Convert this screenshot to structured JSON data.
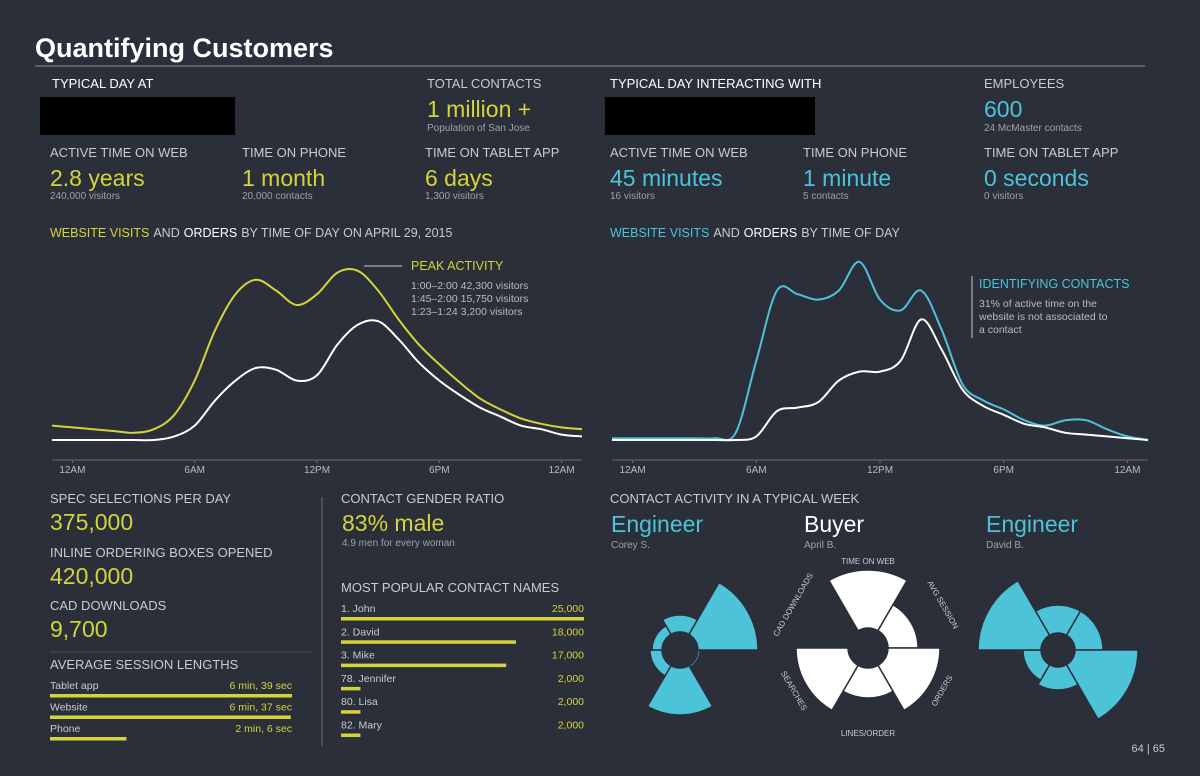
{
  "title": "Quantifying Customers",
  "left_header": {
    "heading": "TYPICAL DAY AT",
    "total": {
      "label": "TOTAL CONTACTS",
      "value": "1 million +",
      "note": "Population of San Jose"
    },
    "stats": [
      {
        "label": "ACTIVE TIME ON WEB",
        "value": "2.8 years",
        "note": "240,000 visitors"
      },
      {
        "label": "TIME ON PHONE",
        "value": "1 month",
        "note": "20,000 contacts"
      },
      {
        "label": "TIME ON TABLET APP",
        "value": "6 days",
        "note": "1,300 visitors"
      }
    ]
  },
  "right_header": {
    "heading": "TYPICAL DAY INTERACTING WITH",
    "total": {
      "label": "EMPLOYEES",
      "value": "600",
      "note": "24 McMaster contacts"
    },
    "stats": [
      {
        "label": "ACTIVE TIME ON WEB",
        "value": "45 minutes",
        "note": "16 visitors"
      },
      {
        "label": "TIME ON PHONE",
        "value": "1 minute",
        "note": "5 contacts"
      },
      {
        "label": "TIME ON TABLET APP",
        "value": "0 seconds",
        "note": "0 visitors"
      }
    ]
  },
  "chart_data": [
    {
      "type": "line",
      "title_connector": "AND",
      "title_suffix": "BY TIME OF DAY ON APRIL 29, 2015",
      "x": [
        -1,
        0,
        1,
        2,
        3,
        4,
        5,
        6,
        7,
        8,
        9,
        10,
        11,
        12,
        13,
        14,
        15,
        16,
        17,
        18,
        19,
        20,
        21,
        22,
        23,
        24,
        25
      ],
      "xlim": [
        -1,
        25
      ],
      "ylim": [
        0,
        100
      ],
      "xticks": [
        {
          "value": 0,
          "label": "12AM"
        },
        {
          "value": 6,
          "label": "6AM"
        },
        {
          "value": 12,
          "label": "12PM"
        },
        {
          "value": 18,
          "label": "6PM"
        },
        {
          "value": 24,
          "label": "12AM"
        }
      ],
      "series": [
        {
          "name": "WEBSITE VISITS",
          "color": "#d4d43a",
          "values": [
            8,
            7,
            6,
            5,
            4,
            6,
            14,
            33,
            61,
            81,
            89,
            83,
            75,
            81,
            93,
            94,
            83,
            67,
            53,
            42,
            32,
            23,
            17,
            12,
            9,
            7,
            6
          ]
        },
        {
          "name": "ORDERS",
          "color": "#ffffff",
          "values": [
            0,
            0,
            0,
            0,
            0,
            0,
            2,
            8,
            22,
            33,
            40,
            39,
            33,
            36,
            53,
            64,
            66,
            56,
            43,
            33,
            25,
            18,
            13,
            8,
            6,
            3,
            2
          ]
        }
      ],
      "annotation": {
        "title": "PEAK ACTIVITY",
        "lines": [
          "1:00–2:00  42,300 visitors",
          "1:45–2:00  15,750 visitors",
          "1:23–1:24  3,200 visitors"
        ]
      }
    },
    {
      "type": "line",
      "title_connector": "AND",
      "title_suffix": "BY TIME OF DAY",
      "x": [
        -1,
        0,
        1,
        2,
        3,
        4,
        5,
        6,
        7,
        8,
        9,
        10,
        11,
        12,
        13,
        14,
        15,
        16,
        17,
        18,
        19,
        20,
        21,
        22,
        23,
        24,
        25
      ],
      "xlim": [
        -1,
        25
      ],
      "ylim": [
        0,
        100
      ],
      "xticks": [
        {
          "value": 0,
          "label": "12AM"
        },
        {
          "value": 6,
          "label": "6AM"
        },
        {
          "value": 12,
          "label": "12PM"
        },
        {
          "value": 18,
          "label": "6PM"
        },
        {
          "value": 24,
          "label": "12AM"
        }
      ],
      "series": [
        {
          "name": "WEBSITE VISITS",
          "color": "#4cc3d9",
          "values": [
            1,
            1,
            1,
            1,
            1,
            1,
            4,
            44,
            83,
            81,
            78,
            83,
            99,
            78,
            72,
            83,
            61,
            31,
            22,
            17,
            11,
            8,
            11,
            11,
            6,
            2,
            0
          ]
        },
        {
          "name": "ORDERS",
          "color": "#ffffff",
          "values": [
            0,
            0,
            0,
            0,
            0,
            0,
            0,
            2,
            16,
            18,
            21,
            33,
            38,
            38,
            44,
            67,
            50,
            28,
            19,
            14,
            9,
            7,
            4,
            3,
            2,
            1,
            0
          ]
        }
      ],
      "annotation": {
        "title": "IDENTIFYING CONTACTS",
        "lines": [
          "31% of active time on the",
          "website is not associated to",
          "a contact"
        ]
      }
    }
  ],
  "counts": [
    {
      "label": "SPEC SELECTIONS PER DAY",
      "value": "375,000"
    },
    {
      "label": "INLINE ORDERING BOXES OPENED",
      "value": "420,000"
    },
    {
      "label": "CAD DOWNLOADS",
      "value": "9,700"
    }
  ],
  "sessions": {
    "title": "AVERAGE SESSION LENGTHS",
    "rows": [
      {
        "name": "Tablet app",
        "value": 399,
        "value_label": "6 min, 39 sec"
      },
      {
        "name": "Website",
        "value": 397,
        "value_label": "6 min, 37 sec"
      },
      {
        "name": "Phone",
        "value": 126,
        "value_label": "2 min, 6 sec"
      }
    ]
  },
  "gender": {
    "label": "CONTACT GENDER RATIO",
    "value": "83% male",
    "note": "4.9 men for every woman"
  },
  "popular_names": {
    "title": "MOST POPULAR CONTACT NAMES",
    "rows": [
      {
        "name": "1. John",
        "value": 25000,
        "value_label": "25,000"
      },
      {
        "name": "2. David",
        "value": 18000,
        "value_label": "18,000"
      },
      {
        "name": "3. Mike",
        "value": 17000,
        "value_label": "17,000"
      },
      {
        "name": "78. Jennifer",
        "value": 2000,
        "value_label": "2,000"
      },
      {
        "name": "80. Lisa",
        "value": 2000,
        "value_label": "2,000"
      },
      {
        "name": "82. Mary",
        "value": 2000,
        "value_label": "2,000"
      }
    ]
  },
  "week": {
    "title": "CONTACT ACTIVITY IN A TYPICAL WEEK",
    "people": [
      {
        "role": "Engineer",
        "name": "Corey S."
      },
      {
        "role": "Buyer",
        "name": "April B."
      },
      {
        "role": "Engineer",
        "name": "David B."
      }
    ],
    "axes": [
      "TIME ON WEB",
      "AVG SESSION",
      "ORDERS",
      "LINES/ORDER",
      "SEARCHES",
      "CAD DOWNLOADS"
    ]
  },
  "page_number": "64 | 65"
}
